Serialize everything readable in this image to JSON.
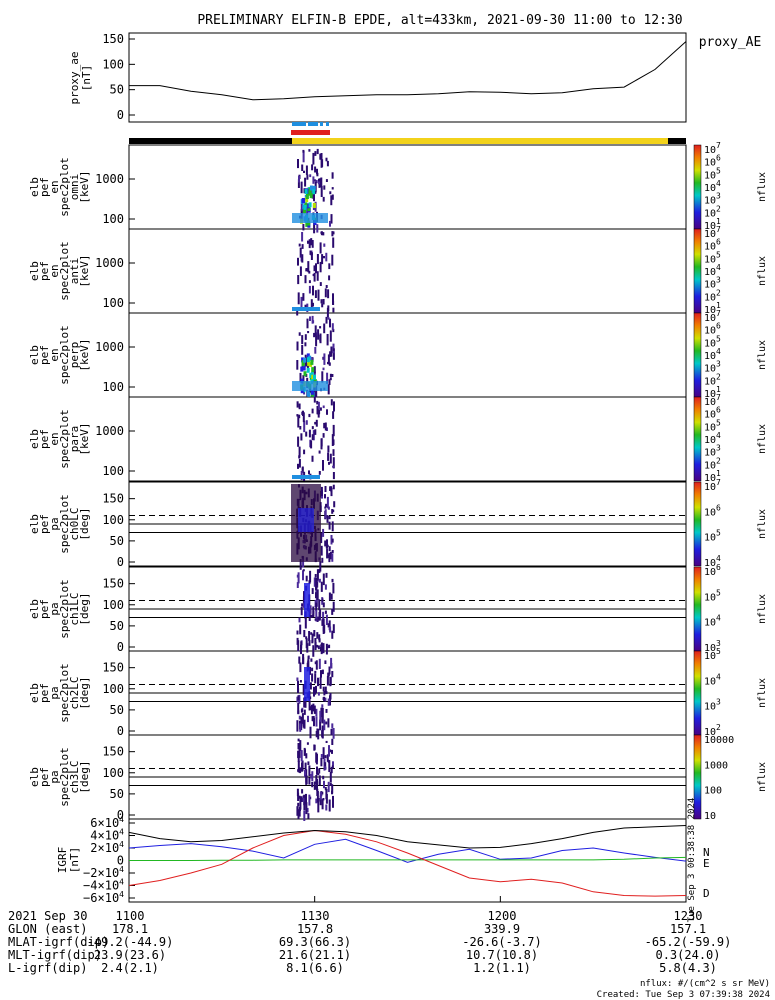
{
  "title": "PRELIMINARY ELFIN-B EPDE, alt=433km, 2021-09-30 11:00 to 12:30",
  "proxy_label": "proxy_AE",
  "panels": [
    {
      "id": "proxy_ae",
      "ylabel": [
        "proxy_ae",
        "[nT]"
      ],
      "yticks": [
        "150",
        "100",
        "50",
        "0"
      ]
    },
    {
      "id": "omni",
      "ylabel": [
        "elb",
        "pef",
        "en",
        "spec2plot",
        "omni",
        "[keV]"
      ],
      "yticks": [
        "1000",
        "100"
      ],
      "cb_label": "nflux",
      "cb_ticks": [
        "10^7",
        "10^6",
        "10^5",
        "10^4",
        "10^3",
        "10^2",
        "10^1"
      ]
    },
    {
      "id": "anti",
      "ylabel": [
        "elb",
        "pef",
        "en",
        "spec2plot",
        "anti",
        "[keV]"
      ],
      "yticks": [
        "1000",
        "100"
      ],
      "cb_label": "nflux",
      "cb_ticks": [
        "10^7",
        "10^6",
        "10^5",
        "10^4",
        "10^3",
        "10^2",
        "10^1"
      ]
    },
    {
      "id": "perp",
      "ylabel": [
        "elb",
        "pef",
        "en",
        "spec2plot",
        "perp",
        "[keV]"
      ],
      "yticks": [
        "1000",
        "100"
      ],
      "cb_label": "nflux",
      "cb_ticks": [
        "10^7",
        "10^6",
        "10^5",
        "10^4",
        "10^3",
        "10^2",
        "10^1"
      ]
    },
    {
      "id": "para",
      "ylabel": [
        "elb",
        "pef",
        "en",
        "spec2plot",
        "para",
        "[keV]"
      ],
      "yticks": [
        "1000",
        "100"
      ],
      "cb_label": "nflux",
      "cb_ticks": [
        "10^7",
        "10^6",
        "10^5",
        "10^4",
        "10^3",
        "10^2",
        "10^1"
      ]
    },
    {
      "id": "ch0LC",
      "ylabel": [
        "elb",
        "pef",
        "pa",
        "spec2plot",
        "ch0LC",
        "[deg]"
      ],
      "yticks": [
        "150",
        "100",
        "50",
        "0"
      ],
      "cb_label": "nflux",
      "cb_ticks": [
        "10^7",
        "10^6",
        "10^5",
        "10^4"
      ]
    },
    {
      "id": "ch1LC",
      "ylabel": [
        "elb",
        "pef",
        "pa",
        "spec2plot",
        "ch1LC",
        "[deg]"
      ],
      "yticks": [
        "150",
        "100",
        "50",
        "0"
      ],
      "cb_label": "nflux",
      "cb_ticks": [
        "10^6",
        "10^5",
        "10^4",
        "10^3"
      ]
    },
    {
      "id": "ch2LC",
      "ylabel": [
        "elb",
        "pef",
        "pa",
        "spec2plot",
        "ch2LC",
        "[deg]"
      ],
      "yticks": [
        "150",
        "100",
        "50",
        "0"
      ],
      "cb_label": "nflux",
      "cb_ticks": [
        "10^5",
        "10^4",
        "10^3",
        "10^2"
      ]
    },
    {
      "id": "ch3LC",
      "ylabel": [
        "elb",
        "pef",
        "pa",
        "spec2plot",
        "ch3LC",
        "[deg]"
      ],
      "yticks": [
        "150",
        "100",
        "50",
        "0"
      ],
      "cb_label": "nflux",
      "cb_ticks": [
        "10000",
        "1000",
        "100",
        "10"
      ]
    },
    {
      "id": "igrf",
      "ylabel": [
        "IGRF",
        "[nT]"
      ],
      "yticks": [
        "6×10^4",
        "4×10^4",
        "2×10^4",
        "0",
        "−2×10^4",
        "−4×10^4",
        "−6×10^4"
      ]
    }
  ],
  "igrf_legend": [
    "N",
    "E",
    "D"
  ],
  "footer": {
    "rows": [
      {
        "label": "2021 Sep 30",
        "values": [
          "1100",
          "1130",
          "1200",
          "1230"
        ]
      },
      {
        "label": "GLON (east)",
        "values": [
          "178.1",
          "157.8",
          "339.9",
          "157.1"
        ]
      },
      {
        "label": "MLAT-igrf(dip)",
        "values": [
          "-49.2(-44.9)",
          "69.3(66.3)",
          "-26.6(-3.7)",
          "-65.2(-59.9)"
        ]
      },
      {
        "label": "MLT-igrf(dip)",
        "values": [
          "23.9(23.6)",
          "21.6(21.1)",
          "10.7(10.8)",
          "0.3(24.0)"
        ]
      },
      {
        "label": "L-igrf(dip)",
        "values": [
          "2.4(2.1)",
          "8.1(6.6)",
          "1.2(1.1)",
          "5.8(4.3)"
        ]
      }
    ],
    "units_note": "nflux: #/(cm^2 s sr MeV)",
    "created": "Created: Tue Sep  3 07:39:38 2024",
    "side_stamp": "Tue Sep  3 00:38:38 2024"
  },
  "chart_data": {
    "type": "line",
    "title": "PRELIMINARY ELFIN-B EPDE, alt=433km, 2021-09-30 11:00 to 12:30",
    "x_range": [
      "11:00",
      "12:30"
    ],
    "x_tick_labels": [
      "1100",
      "1130",
      "1200",
      "1230"
    ],
    "proxy_ae": {
      "ylabel": "proxy_ae [nT]",
      "ylim": [
        0,
        160
      ],
      "x_minutes": [
        0,
        5,
        10,
        15,
        20,
        25,
        30,
        35,
        40,
        45,
        50,
        55,
        60,
        65,
        70,
        75,
        80,
        85,
        90
      ],
      "values": [
        58,
        58,
        47,
        40,
        30,
        32,
        36,
        38,
        40,
        40,
        42,
        46,
        45,
        42,
        44,
        52,
        55,
        90,
        145
      ]
    },
    "igrf": {
      "ylabel": "IGRF [nT]",
      "ylim": [
        -60000,
        60000
      ],
      "x_minutes": [
        0,
        5,
        10,
        15,
        20,
        25,
        30,
        35,
        40,
        45,
        50,
        55,
        60,
        65,
        70,
        75,
        80,
        85,
        90
      ],
      "series": [
        {
          "name": "N",
          "color": "#1f1fe0",
          "values": [
            20000,
            24000,
            27000,
            22000,
            15000,
            4000,
            26000,
            34000,
            16000,
            -3000,
            10000,
            18000,
            2000,
            4000,
            16000,
            20000,
            12000,
            5000,
            -1000
          ]
        },
        {
          "name": "E",
          "color": "#22b822",
          "values": [
            0,
            0,
            0,
            500,
            500,
            1000,
            1000,
            1000,
            1000,
            1000,
            1000,
            1000,
            1000,
            1000,
            1000,
            1000,
            2000,
            4000,
            5000
          ]
        },
        {
          "name": "D",
          "color": "#e01f1f",
          "values": [
            -40000,
            -32000,
            -20000,
            -6000,
            20000,
            40000,
            48000,
            42000,
            30000,
            12000,
            -8000,
            -28000,
            -34000,
            -30000,
            -36000,
            -50000,
            -56000,
            -57000,
            -56000
          ]
        },
        {
          "name": "total",
          "color": "#000000",
          "values": [
            45000,
            35000,
            30000,
            32000,
            38000,
            44000,
            48000,
            46000,
            40000,
            30000,
            25000,
            20000,
            21000,
            27000,
            35000,
            45000,
            52000,
            54000,
            56000
          ]
        }
      ]
    },
    "spectrogram_window_minutes": [
      27,
      33
    ],
    "pitch_angle_reference_lines_deg": [
      110,
      90,
      70
    ]
  }
}
